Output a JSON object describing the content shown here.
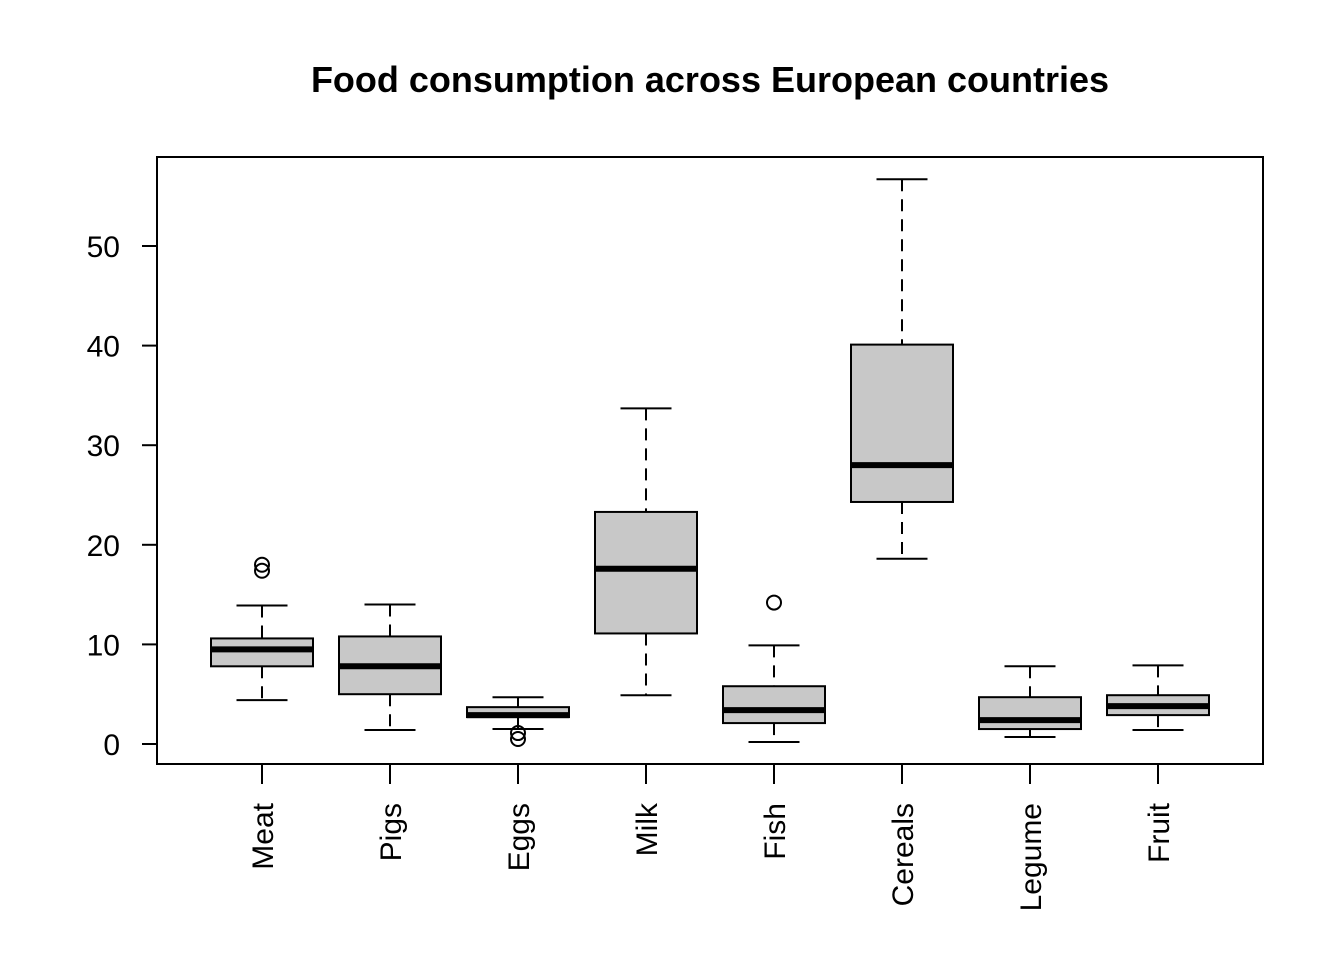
{
  "chart_data": {
    "type": "boxplot",
    "title": "Food consumption across European countries",
    "xlabel": "",
    "ylabel": "",
    "ylim": [
      -2,
      58
    ],
    "yticks": [
      0,
      10,
      20,
      30,
      40,
      50
    ],
    "grid": false,
    "box_fill": "#c8c8c8",
    "categories": [
      "Meat",
      "Pigs",
      "Eggs",
      "Milk",
      "Fish",
      "Cereals",
      "Legume",
      "Fruit"
    ],
    "boxes": [
      {
        "name": "Meat",
        "whisker_low": 4.4,
        "q1": 7.8,
        "median": 9.5,
        "q3": 10.6,
        "whisker_high": 13.9,
        "outliers": [
          17.4,
          18.0
        ]
      },
      {
        "name": "Pigs",
        "whisker_low": 1.4,
        "q1": 5.0,
        "median": 7.8,
        "q3": 10.8,
        "whisker_high": 14.0,
        "outliers": []
      },
      {
        "name": "Eggs",
        "whisker_low": 1.5,
        "q1": 2.7,
        "median": 2.9,
        "q3": 3.7,
        "whisker_high": 4.7,
        "outliers": [
          0.5,
          1.1
        ]
      },
      {
        "name": "Milk",
        "whisker_low": 4.9,
        "q1": 11.1,
        "median": 17.6,
        "q3": 23.3,
        "whisker_high": 33.7,
        "outliers": []
      },
      {
        "name": "Fish",
        "whisker_low": 0.2,
        "q1": 2.1,
        "median": 3.4,
        "q3": 5.8,
        "whisker_high": 9.9,
        "outliers": [
          14.2
        ]
      },
      {
        "name": "Cereals",
        "whisker_low": 18.6,
        "q1": 24.3,
        "median": 28.0,
        "q3": 40.1,
        "whisker_high": 56.7,
        "outliers": []
      },
      {
        "name": "Legume",
        "whisker_low": 0.7,
        "q1": 1.5,
        "median": 2.4,
        "q3": 4.7,
        "whisker_high": 7.8,
        "outliers": []
      },
      {
        "name": "Fruit",
        "whisker_low": 1.4,
        "q1": 2.9,
        "median": 3.8,
        "q3": 4.9,
        "whisker_high": 7.9,
        "outliers": []
      }
    ]
  }
}
